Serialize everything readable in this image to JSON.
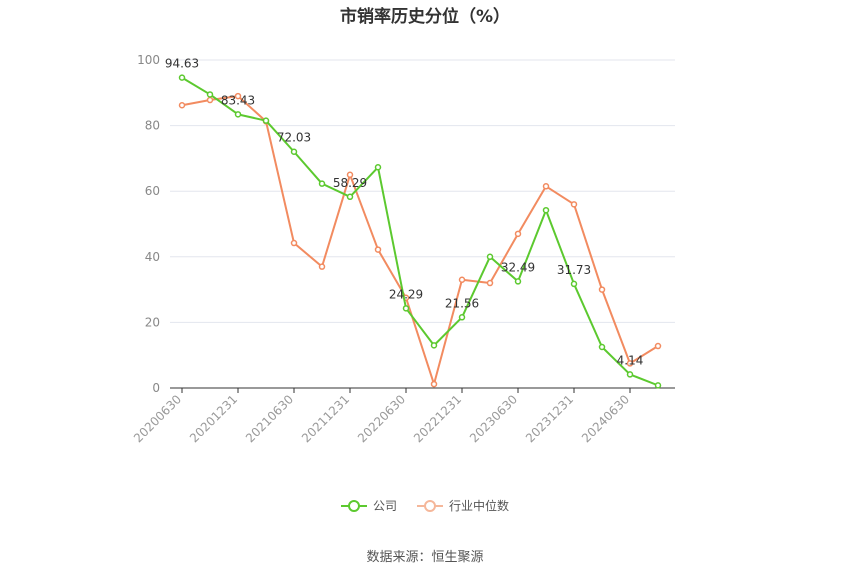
{
  "chart_data": {
    "type": "line",
    "title": "市销率历史分位（%）",
    "x": [
      "20200630",
      "20200930",
      "20201231",
      "20210331",
      "20210630",
      "20210930",
      "20211231",
      "20220331",
      "20220630",
      "20220930",
      "20221231",
      "20230331",
      "20230630",
      "20230930",
      "20231231",
      "20240331",
      "20240630",
      "20240930"
    ],
    "x_tick_labels": [
      "20200630",
      "20201231",
      "20210630",
      "20211231",
      "20220630",
      "20221231",
      "20230630",
      "20231231",
      "20240630"
    ],
    "y_ticks": [
      0,
      20,
      40,
      60,
      80,
      100
    ],
    "ylim": [
      0,
      100
    ],
    "grid": true,
    "legend_position": "bottom",
    "series": [
      {
        "name": "公司",
        "color": "#5cc92f",
        "values": [
          94.63,
          89.5,
          83.43,
          81.5,
          72.03,
          62.3,
          58.29,
          67.3,
          24.29,
          13.0,
          21.56,
          40.0,
          32.49,
          54.2,
          31.73,
          12.5,
          4.14,
          0.8
        ],
        "labels": {
          "0": "94.63",
          "2": "83.43",
          "4": "72.03",
          "6": "58.29",
          "8": "24.29",
          "10": "21.56",
          "12": "32.49",
          "14": "31.73",
          "16": "4.14"
        }
      },
      {
        "name": "行业中位数",
        "color": "#f28b60",
        "values": [
          86.2,
          87.8,
          89.0,
          81.3,
          44.2,
          37.0,
          65.0,
          42.2,
          27.5,
          1.2,
          33.0,
          32.0,
          47.0,
          61.5,
          56.0,
          30.0,
          7.5,
          12.8
        ]
      }
    ]
  },
  "source": "数据来源：恒生聚源"
}
